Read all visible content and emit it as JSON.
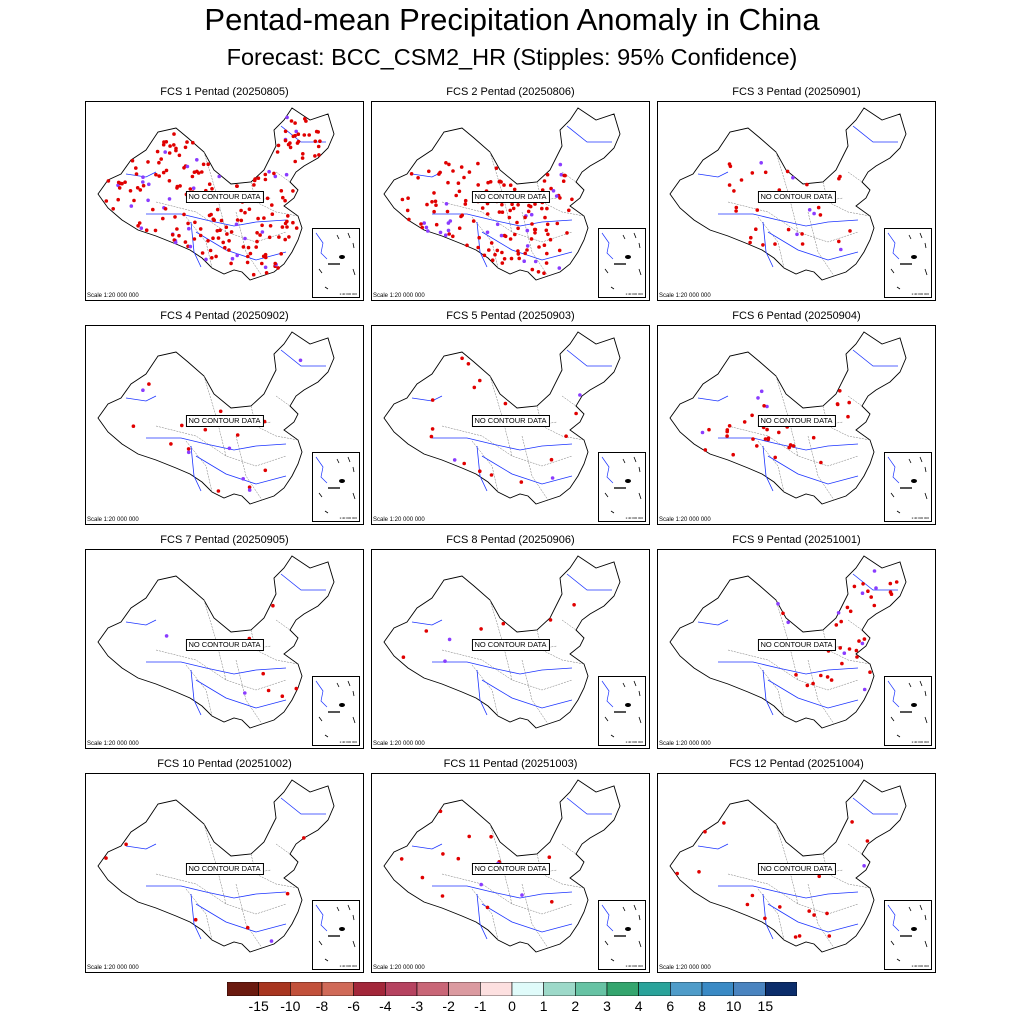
{
  "title": "Pentad-mean Precipitation Anomaly in China",
  "subtitle": "Forecast: BCC_CSM2_HR (Stipples: 95% Confidence)",
  "no_data_text": "NO CONTOUR DATA",
  "scale_text": "Scale 1:20 000 000",
  "inset_scale_text": "1:40 000 000",
  "panels": [
    {
      "title": "FCS 1 Pentad (20250805)",
      "stipple": "heavy-wide"
    },
    {
      "title": "FCS 2 Pentad (20250806)",
      "stipple": "heavy-south"
    },
    {
      "title": "FCS 3 Pentad (20250901)",
      "stipple": "light-center"
    },
    {
      "title": "FCS 4 Pentad (20250902)",
      "stipple": "sparse"
    },
    {
      "title": "FCS 5 Pentad (20250903)",
      "stipple": "sparse"
    },
    {
      "title": "FCS 6 Pentad (20250904)",
      "stipple": "light-center"
    },
    {
      "title": "FCS 7 Pentad (20250905)",
      "stipple": "very-sparse"
    },
    {
      "title": "FCS 8 Pentad (20250906)",
      "stipple": "very-sparse"
    },
    {
      "title": "FCS 9 Pentad (20251001)",
      "stipple": "northeast"
    },
    {
      "title": "FCS 10 Pentad (20251002)",
      "stipple": "very-sparse"
    },
    {
      "title": "FCS 11 Pentad (20251003)",
      "stipple": "sparse"
    },
    {
      "title": "FCS 12 Pentad (20251004)",
      "stipple": "sparse"
    }
  ],
  "colorbar": {
    "labels": [
      "-15",
      "-10",
      "-8",
      "-6",
      "-4",
      "-3",
      "-2",
      "-1",
      "0",
      "1",
      "2",
      "3",
      "4",
      "6",
      "8",
      "10",
      "15"
    ],
    "colors": [
      "#6b1a0f",
      "#a8351f",
      "#c2513b",
      "#d06a58",
      "#a3273a",
      "#b64360",
      "#c96677",
      "#db9aa0",
      "#fde0e0",
      "#e0fbfa",
      "#9dd9c9",
      "#67c3a4",
      "#34a56e",
      "#2aa39a",
      "#4f9cc9",
      "#3a8ac5",
      "#4a84c0",
      "#0b2d6b"
    ]
  },
  "stipple_colors": {
    "dry": "#e00000",
    "wet": "#8a3cff"
  }
}
